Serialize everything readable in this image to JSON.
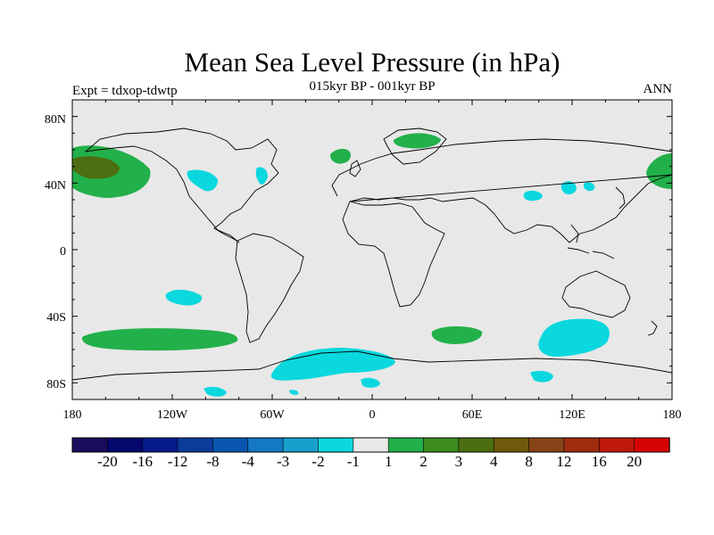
{
  "title": "Mean Sea Level Pressure (in hPa)",
  "subtitle": "015kyr BP - 001kyr BP",
  "left_label": "Expt = tdxop-tdwtp",
  "right_label": "ANN",
  "lat_ticks": [
    "80N",
    "40N",
    "0",
    "40S",
    "80S"
  ],
  "lon_ticks": [
    "180",
    "120W",
    "60W",
    "0",
    "60E",
    "120E",
    "180"
  ],
  "colorbar": {
    "colors": [
      "#1a0c5c",
      "#06086e",
      "#061a8c",
      "#0a3c9c",
      "#0a56ae",
      "#1479c4",
      "#18a0cc",
      "#0ad8de",
      "#e8e8e8",
      "#22b04a",
      "#3c8c1e",
      "#4c6e10",
      "#6e5a0a",
      "#884418",
      "#a02c10",
      "#c0180c",
      "#d80404"
    ],
    "labels": [
      "-20",
      "-16",
      "-12",
      "-8",
      "-4",
      "-3",
      "-2",
      "-1",
      "1",
      "2",
      "3",
      "4",
      "8",
      "12",
      "16",
      "20"
    ]
  },
  "colors": {
    "background": "#e8e8e8",
    "positive_anomaly": "#22b04a",
    "strong_positive_anomaly": "#4c6e10",
    "negative_anomaly": "#0ad8de"
  }
}
